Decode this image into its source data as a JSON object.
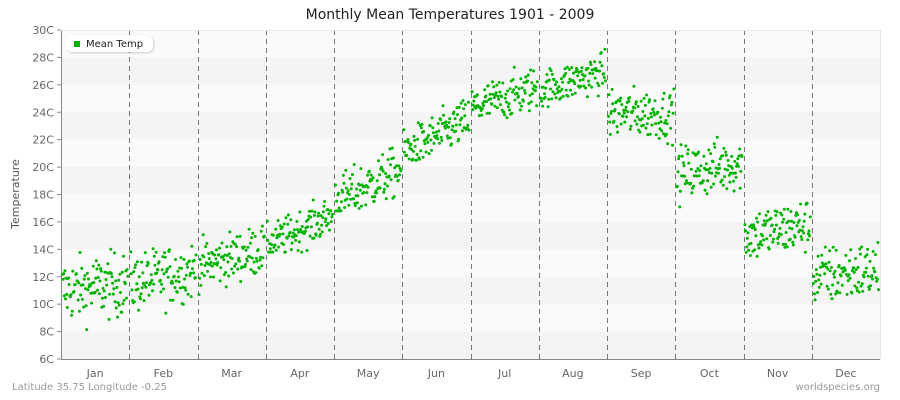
{
  "title": "Monthly Mean Temperatures 1901 - 2009",
  "footer_left": "Latitude 35.75 Longitude -0.25",
  "footer_right": "worldspecies.org",
  "legend_label": "Mean Temp",
  "colors": {
    "point": "#00b300",
    "band_dark": "#f4f4f4",
    "band_light": "#fafafa",
    "axis": "#888888",
    "divider": "#777777"
  },
  "chart_data": {
    "type": "scatter",
    "title": "Monthly Mean Temperatures 1901 - 2009",
    "xlabel": "",
    "ylabel": "Temperature",
    "ylim": [
      6,
      30
    ],
    "yticks": [
      "6C",
      "8C",
      "10C",
      "12C",
      "14C",
      "16C",
      "18C",
      "20C",
      "22C",
      "24C",
      "26C",
      "28C",
      "30C"
    ],
    "categories": [
      "Jan",
      "Feb",
      "Mar",
      "Apr",
      "May",
      "Jun",
      "Jul",
      "Aug",
      "Sep",
      "Oct",
      "Nov",
      "Dec"
    ],
    "legend": [
      "Mean Temp"
    ],
    "legend_position": "top-left",
    "grid": "alternating horizontal bands, dashed vertical month dividers",
    "points_per_month": 109,
    "series": [
      {
        "name": "Mean Temp",
        "monthly_summary": [
          {
            "month": "Jan",
            "start": 11.0,
            "end": 11.5,
            "mean": 10.9,
            "min": 7.4,
            "max": 14.3,
            "spread": 1.3
          },
          {
            "month": "Feb",
            "start": 11.5,
            "end": 12.5,
            "mean": 11.8,
            "min": 8.3,
            "max": 14.7,
            "spread": 1.2
          },
          {
            "month": "Mar",
            "start": 12.8,
            "end": 14.0,
            "mean": 13.5,
            "min": 10.7,
            "max": 17.0,
            "spread": 1.0
          },
          {
            "month": "Apr",
            "start": 14.3,
            "end": 16.5,
            "mean": 15.4,
            "min": 13.8,
            "max": 17.6,
            "spread": 0.8
          },
          {
            "month": "May",
            "start": 17.5,
            "end": 19.8,
            "mean": 18.6,
            "min": 16.8,
            "max": 22.0,
            "spread": 1.0
          },
          {
            "month": "Jun",
            "start": 21.0,
            "end": 23.5,
            "mean": 22.5,
            "min": 20.5,
            "max": 25.3,
            "spread": 0.9
          },
          {
            "month": "Jul",
            "start": 24.3,
            "end": 25.8,
            "mean": 25.2,
            "min": 23.6,
            "max": 28.1,
            "spread": 0.9
          },
          {
            "month": "Aug",
            "start": 25.6,
            "end": 27.0,
            "mean": 26.2,
            "min": 24.4,
            "max": 28.6,
            "spread": 0.8
          },
          {
            "month": "Sep",
            "start": 24.0,
            "end": 23.8,
            "mean": 23.8,
            "min": 21.0,
            "max": 26.0,
            "spread": 1.0
          },
          {
            "month": "Oct",
            "start": 19.5,
            "end": 20.3,
            "mean": 19.6,
            "min": 16.7,
            "max": 22.4,
            "spread": 1.1
          },
          {
            "month": "Nov",
            "start": 15.0,
            "end": 15.8,
            "mean": 15.0,
            "min": 12.0,
            "max": 17.7,
            "spread": 1.1
          },
          {
            "month": "Dec",
            "start": 12.0,
            "end": 12.5,
            "mean": 11.9,
            "min": 8.3,
            "max": 14.6,
            "spread": 1.2
          }
        ]
      }
    ]
  }
}
